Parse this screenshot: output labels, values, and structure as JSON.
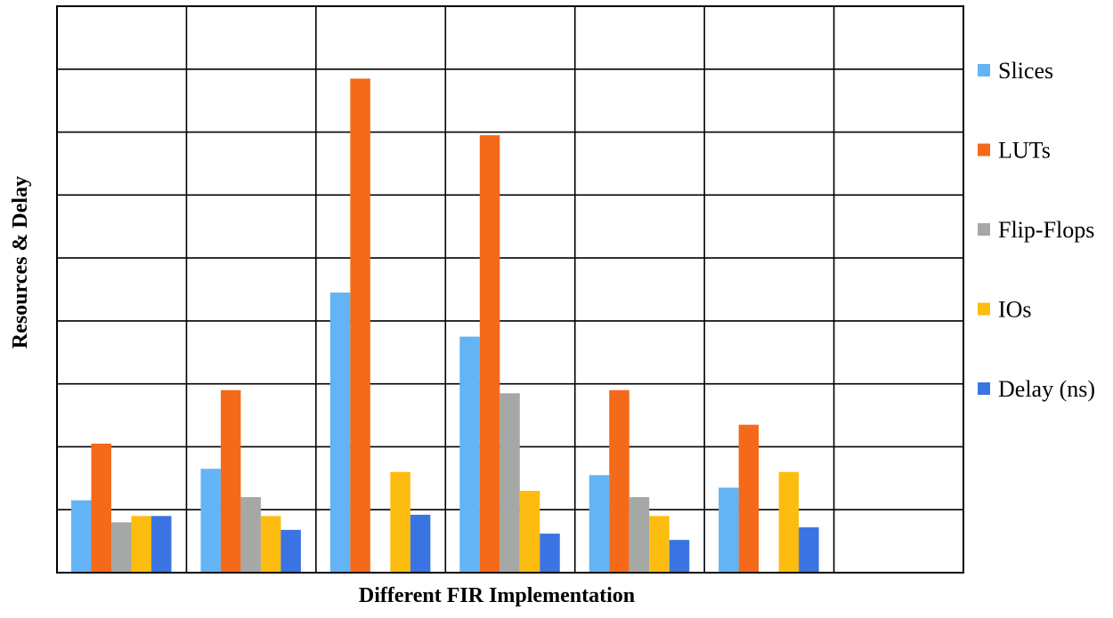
{
  "chart_data": {
    "type": "bar",
    "title": "",
    "xlabel": "Different FIR Implementation",
    "ylabel": "Resources & Delay",
    "ylim": [
      0,
      9
    ],
    "grid": true,
    "legend_position": "right",
    "categories": [
      "",
      "",
      "",
      "",
      "",
      "",
      ""
    ],
    "series": [
      {
        "name": "Slices",
        "color": "#62b4f5",
        "values": [
          1.15,
          1.65,
          4.45,
          3.75,
          1.55,
          1.35,
          null
        ]
      },
      {
        "name": "LUTs",
        "color": "#f46a1a",
        "values": [
          2.05,
          2.9,
          7.85,
          6.95,
          2.9,
          2.35,
          null
        ]
      },
      {
        "name": "Flip-Flops",
        "color": "#a6a8a6",
        "values": [
          0.8,
          1.2,
          0,
          2.85,
          1.2,
          0,
          null
        ]
      },
      {
        "name": "IOs",
        "color": "#fcbd10",
        "values": [
          0.9,
          0.9,
          1.6,
          1.3,
          0.9,
          1.6,
          null
        ]
      },
      {
        "name": "Delay (ns)",
        "color": "#3a74e2",
        "values": [
          0.9,
          0.68,
          0.92,
          0.62,
          0.52,
          0.72,
          null
        ]
      }
    ]
  }
}
